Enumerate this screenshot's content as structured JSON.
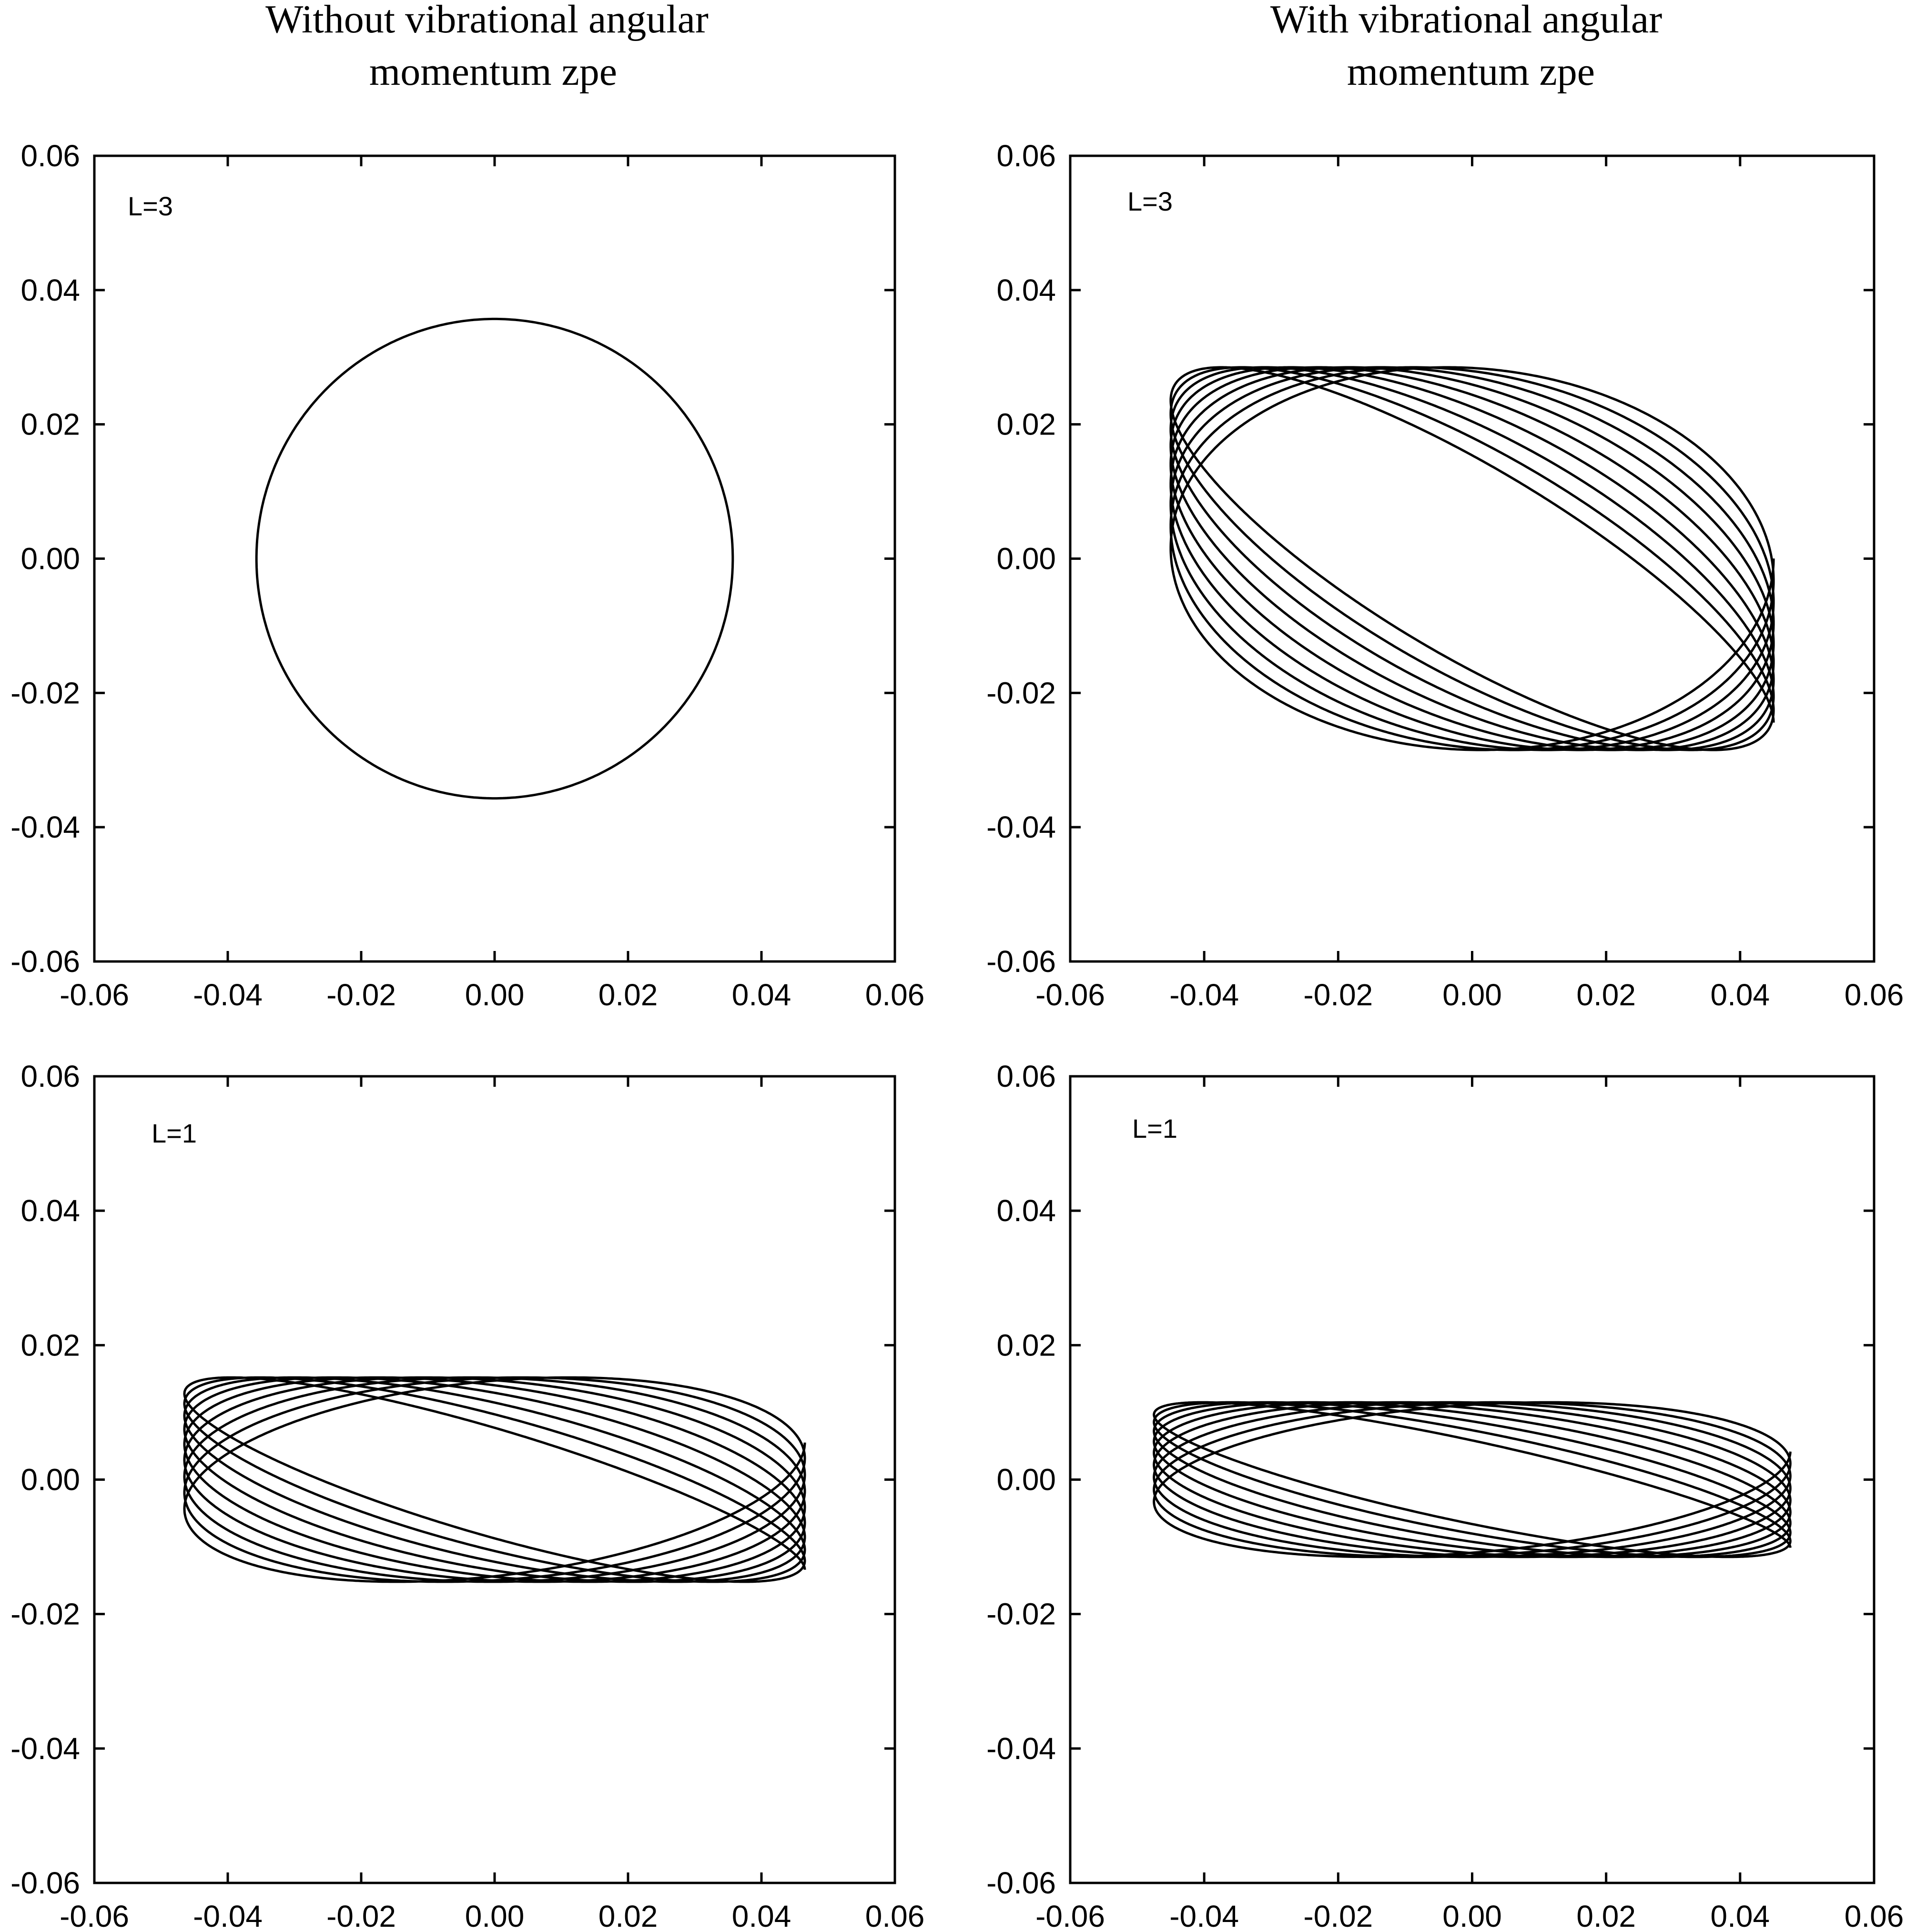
{
  "column_titles": [
    [
      "Without vibrational angular",
      "momentum zpe"
    ],
    [
      "With vibrational angular",
      "momentum zpe"
    ]
  ],
  "chart_data": [
    {
      "type": "line",
      "label": "L=3",
      "xlim": [
        -0.06,
        0.06
      ],
      "ylim": [
        -0.06,
        0.06
      ],
      "xticks": [
        "-0.06",
        "-0.04",
        "-0.02",
        "0.00",
        "0.02",
        "0.04",
        "0.06"
      ],
      "yticks": [
        "-0.06",
        "-0.04",
        "-0.02",
        "0.00",
        "0.02",
        "0.04",
        "0.06"
      ],
      "grid": false,
      "trajectory": {
        "shape": "circle",
        "center": [
          0,
          0
        ],
        "radius": 0.0357,
        "loops": 1
      }
    },
    {
      "type": "line",
      "label": "L=3",
      "xlim": [
        -0.06,
        0.06
      ],
      "ylim": [
        -0.06,
        0.06
      ],
      "xticks": [
        "-0.06",
        "-0.04",
        "-0.02",
        "0.00",
        "0.02",
        "0.04",
        "0.06"
      ],
      "yticks": [
        "-0.06",
        "-0.04",
        "-0.02",
        "0.00",
        "0.02",
        "0.04",
        "0.06"
      ],
      "grid": false,
      "trajectory": {
        "shape": "precessing-ellipse",
        "x_amplitude": 0.045,
        "y_amplitude": 0.0285,
        "x_center": 0.0,
        "phase_start": 2.6,
        "phase_end": 1.57,
        "loops": 9
      }
    },
    {
      "type": "line",
      "label": "L=1",
      "xlim": [
        -0.06,
        0.06
      ],
      "ylim": [
        -0.06,
        0.06
      ],
      "xticks": [
        "-0.06",
        "-0.04",
        "-0.02",
        "0.00",
        "0.02",
        "0.04",
        "0.06"
      ],
      "yticks": [
        "-0.06",
        "-0.04",
        "-0.02",
        "0.00",
        "0.02",
        "0.04",
        "0.06"
      ],
      "grid": false,
      "trajectory": {
        "shape": "precessing-ellipse",
        "x_amplitude": 0.0465,
        "y_amplitude": 0.0152,
        "x_center": 0.0,
        "phase_start": 2.65,
        "phase_end": 1.2,
        "loops": 9
      }
    },
    {
      "type": "line",
      "label": "L=1",
      "xlim": [
        -0.06,
        0.06
      ],
      "ylim": [
        -0.06,
        0.06
      ],
      "xticks": [
        "-0.06",
        "-0.04",
        "-0.02",
        "0.00",
        "0.02",
        "0.04",
        "0.06"
      ],
      "yticks": [
        "-0.06",
        "-0.04",
        "-0.02",
        "0.00",
        "0.02",
        "0.04",
        "0.06"
      ],
      "grid": false,
      "trajectory": {
        "shape": "precessing-ellipse",
        "x_amplitude": 0.0475,
        "y_amplitude": 0.0115,
        "x_center": 0.0,
        "phase_start": 2.65,
        "phase_end": 1.2,
        "loops": 9
      }
    }
  ]
}
